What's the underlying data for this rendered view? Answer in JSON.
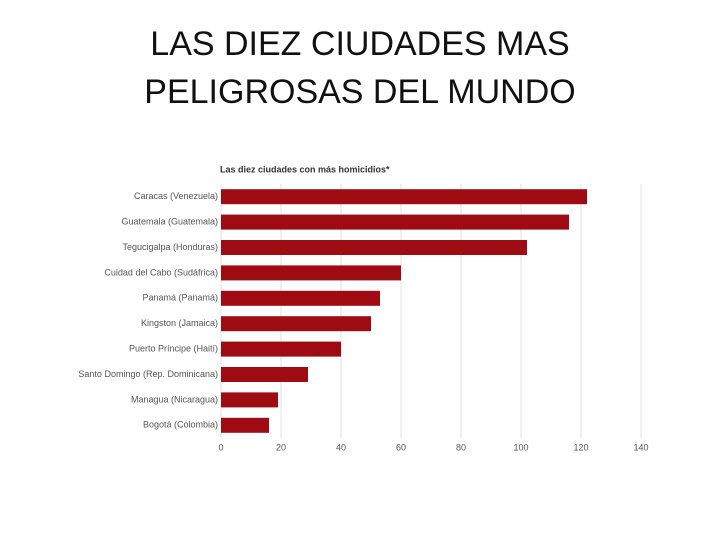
{
  "slide_title": "LAS DIEZ CIUDADES MAS PELIGROSAS DEL MUNDO",
  "chart_data": {
    "type": "bar",
    "orientation": "horizontal",
    "title": "Las diez ciudades con más homicidios*",
    "categories": [
      "Caracas (Venezuela)",
      "Guatemala (Guatemala)",
      "Tegucigalpa (Honduras)",
      "Cuidad del Cabo (Sudáfrica)",
      "Panamá (Panamá)",
      "Kingston (Jamaica)",
      "Puerto Príncipe (Haití)",
      "Santo Domingo (Rep. Dominicana)",
      "Managua (Nicaragua)",
      "Bogotá (Colombia)"
    ],
    "values": [
      122,
      116,
      102,
      60,
      53,
      50,
      40,
      29,
      19,
      16
    ],
    "color": "#9e0b12",
    "xlim": [
      0,
      140
    ],
    "xticks": [
      0,
      20,
      40,
      60,
      80,
      100,
      120,
      140
    ],
    "grid": true
  }
}
